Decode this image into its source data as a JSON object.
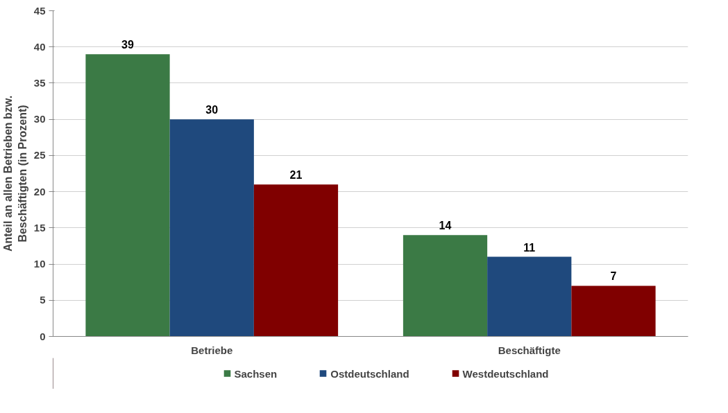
{
  "chart_data": {
    "type": "bar",
    "ylabel": "Anteil an allen Betrieben bzw.\nBeschäftigten (in Prozent)",
    "categories": [
      "Betriebe",
      "Beschäftigte"
    ],
    "series": [
      {
        "name": "Sachsen",
        "color": "#3b7a45",
        "values": [
          39,
          14
        ]
      },
      {
        "name": "Ostdeutschland",
        "color": "#1f497d",
        "values": [
          30,
          11
        ]
      },
      {
        "name": "Westdeutschland",
        "color": "#800000",
        "values": [
          21,
          7
        ]
      }
    ],
    "ylim": [
      0,
      45
    ],
    "yticks": [
      0,
      5,
      10,
      15,
      20,
      25,
      30,
      35,
      40,
      45
    ],
    "grid": "y",
    "legend": "bottom",
    "data_labels": true
  }
}
